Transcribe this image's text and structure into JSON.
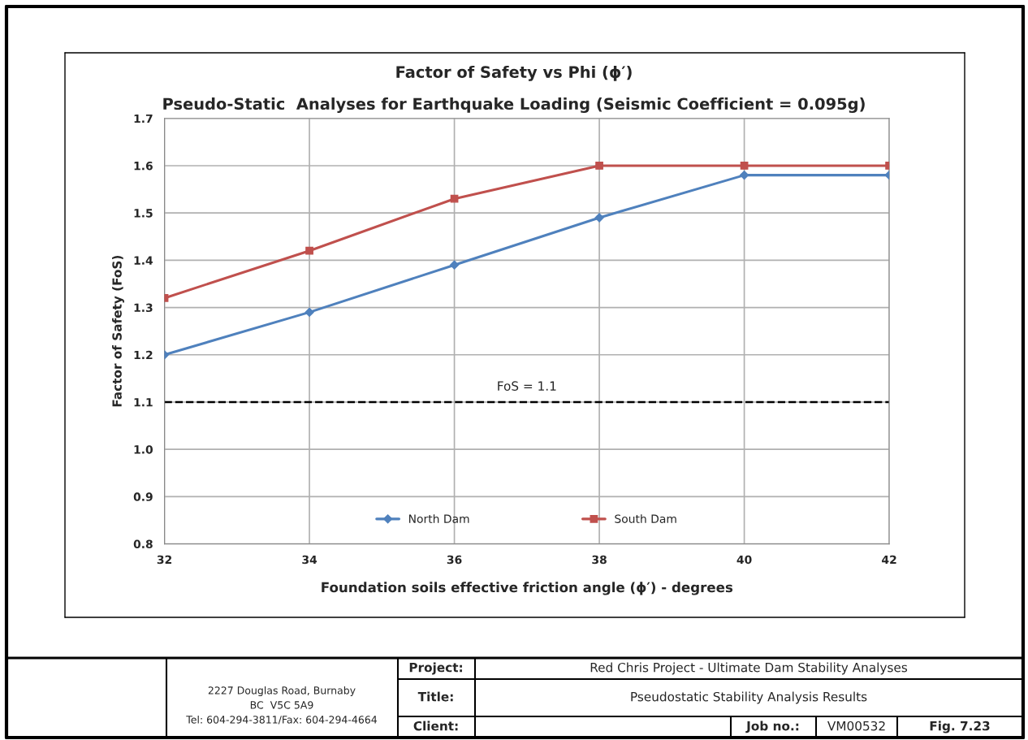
{
  "chart_data": {
    "type": "line",
    "title": "Factor of Safety vs Phi (ϕ′)",
    "subtitle": "Pseudo-Static  Analyses for Earthquake Loading (Seismic Coefficient = 0.095g)",
    "xlabel": "Foundation soils effective friction angle (ϕ′) - degrees",
    "ylabel": "Factor of Safety (FoS)",
    "x": [
      32,
      34,
      36,
      38,
      40,
      42
    ],
    "series": [
      {
        "name": "North Dam",
        "color": "#4f81bd",
        "marker": "diamond",
        "values": [
          1.2,
          1.29,
          1.39,
          1.49,
          1.58,
          1.58
        ]
      },
      {
        "name": "South Dam",
        "color": "#c0504d",
        "marker": "square",
        "values": [
          1.32,
          1.42,
          1.53,
          1.6,
          1.6,
          1.6
        ]
      }
    ],
    "xlim": [
      32,
      42
    ],
    "xticks": [
      32,
      34,
      36,
      38,
      40,
      42
    ],
    "ylim": [
      0.8,
      1.7
    ],
    "yticks": [
      {
        "value": 0.8,
        "label": "0.8"
      },
      {
        "value": 0.9,
        "label": "0.9"
      },
      {
        "value": 1.0,
        "label": "1.0"
      },
      {
        "value": 1.1,
        "label": "1.1"
      },
      {
        "value": 1.2,
        "label": "1.2"
      },
      {
        "value": 1.3,
        "label": "1.3"
      },
      {
        "value": 1.4,
        "label": "1.4"
      },
      {
        "value": 1.5,
        "label": "1.5"
      },
      {
        "value": 1.6,
        "label": "1.6"
      },
      {
        "value": 1.7,
        "label": "1.7"
      }
    ],
    "ref_lines": [
      {
        "axis": "y",
        "value": 1.1,
        "label": "FoS = 1.1",
        "color": "#000000",
        "line_style": "dashed"
      }
    ],
    "grid": true,
    "legend": "bottom",
    "line_style": "solid",
    "annotations": [
      "2227 Douglas Road, Burnaby",
      "BC  V5C 5A9",
      "Tel: 604-294-3811/Fax: 604-294-4664",
      "Project:",
      "Red Chris Project - Ultimate Dam Stability Analyses",
      "Title:",
      "Pseudostatic Stability Analysis Results",
      "Client:",
      "Job no.:",
      "VM00532",
      "Fig. 7.23"
    ]
  }
}
